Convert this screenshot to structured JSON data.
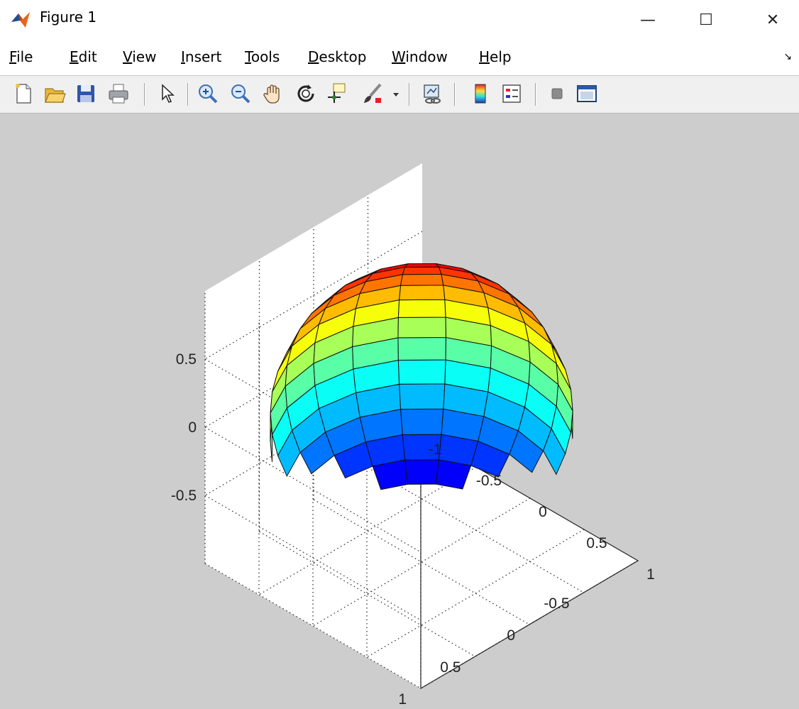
{
  "window": {
    "title": "Figure 1",
    "controls": {
      "minimize": "—",
      "maximize": "☐",
      "close": "✕"
    }
  },
  "menu": {
    "items": [
      {
        "key": "F",
        "rest": "ile"
      },
      {
        "key": "E",
        "rest": "dit"
      },
      {
        "key": "V",
        "rest": "iew"
      },
      {
        "key": "I",
        "rest": "nsert"
      },
      {
        "key": "T",
        "rest": "ools"
      },
      {
        "key": "D",
        "rest": "esktop"
      },
      {
        "key": "W",
        "rest": "indow"
      },
      {
        "key": "H",
        "rest": "elp"
      }
    ],
    "dock_arrow": "↘"
  },
  "toolbar": {
    "icons": [
      "new-figure-icon",
      "open-file-icon",
      "save-icon",
      "print-icon",
      "edit-plot-icon",
      "zoom-in-icon",
      "zoom-out-icon",
      "pan-icon",
      "rotate-3d-icon",
      "data-cursor-icon",
      "brush-icon",
      "brush-dropdown-icon",
      "link-plot-icon",
      "colorbar-icon",
      "legend-icon",
      "hide-plot-tools-icon",
      "show-plot-tools-icon"
    ]
  },
  "chart_data": {
    "type": "surface",
    "surface": "unit sphere",
    "colormap": "jet",
    "grid": true,
    "xlim": [
      -1,
      1
    ],
    "ylim": [
      -1,
      1
    ],
    "zlim": [
      -1,
      1
    ],
    "xticks": [
      "-1",
      "-0.5",
      "0",
      "0.5",
      "1"
    ],
    "yticks": [
      "-0.5",
      "0",
      "0.5",
      "1"
    ],
    "zticks": [
      "-0.5",
      "0",
      "0.5"
    ]
  }
}
